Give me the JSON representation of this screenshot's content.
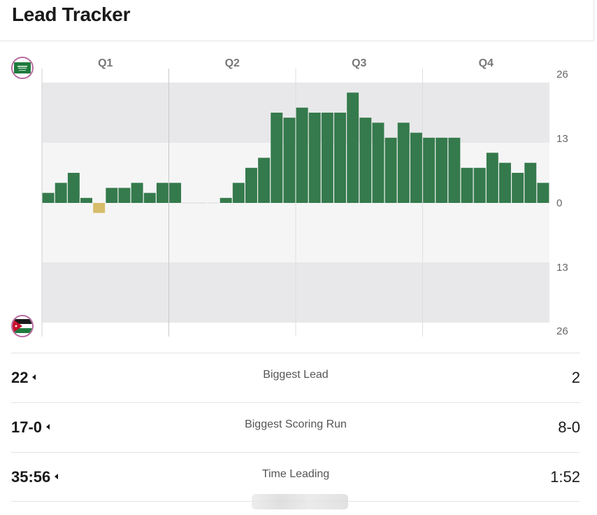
{
  "title": "Lead Tracker",
  "teams": {
    "top": {
      "flag_icon": "saudi-arabia-flag-icon",
      "color": "#357a4c"
    },
    "bottom": {
      "flag_icon": "jordan-flag-icon",
      "color": "#d7bd6a"
    }
  },
  "chart_data": {
    "type": "bar",
    "quarters": [
      "Q1",
      "Q2",
      "Q3",
      "Q4"
    ],
    "y_ticks_top": [
      "26",
      "13",
      "0"
    ],
    "y_ticks_bottom": [
      "13",
      "26"
    ],
    "ylim": [
      -26,
      26
    ],
    "grid": "bands",
    "bar_colors": {
      "positive": "#357a4c",
      "negative": "#d7bd6a"
    },
    "series": [
      {
        "values": [
          2,
          4,
          6,
          1,
          -2,
          3,
          3,
          4,
          2,
          4,
          4,
          0,
          0,
          0,
          1,
          4,
          7,
          9,
          18,
          17,
          19,
          18,
          18,
          18,
          22,
          17,
          16,
          13,
          16,
          14,
          13,
          13,
          13,
          7,
          7,
          10,
          8,
          6,
          8,
          4
        ]
      }
    ]
  },
  "stats": [
    {
      "left": "22",
      "label": "Biggest Lead",
      "right": "2"
    },
    {
      "left": "17-0",
      "label": "Biggest Scoring Run",
      "right": "8-0"
    },
    {
      "left": "35:56",
      "label": "Time Leading",
      "right": "1:52"
    }
  ]
}
